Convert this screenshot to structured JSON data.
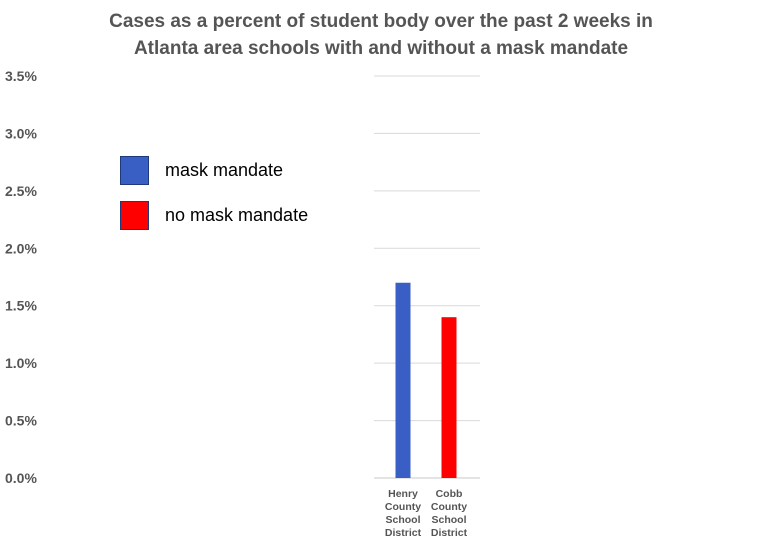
{
  "chart_data": {
    "type": "bar",
    "title_lines": [
      "Cases as a percent of student body over the past 2 weeks in",
      "Atlanta area schools with and without a mask mandate"
    ],
    "categories": [
      [
        "Henry",
        "County",
        "School",
        "District"
      ],
      [
        "Cobb",
        "County",
        "School",
        "District"
      ]
    ],
    "values": [
      1.7,
      1.4
    ],
    "bar_colors": [
      "#3a5fc4",
      "#ff0000"
    ],
    "y_ticks": [
      {
        "value": 0,
        "label": "0.0%"
      },
      {
        "value": 0.5,
        "label": "0.5%"
      },
      {
        "value": 1.0,
        "label": "1.0%"
      },
      {
        "value": 1.5,
        "label": "1.5%"
      },
      {
        "value": 2.0,
        "label": "2.0%"
      },
      {
        "value": 2.5,
        "label": "2.5%"
      },
      {
        "value": 3.0,
        "label": "3.0%"
      },
      {
        "value": 3.5,
        "label": "3.5%"
      }
    ],
    "ylim": [
      0,
      3.5
    ],
    "grid": true,
    "legend_placement": "left",
    "legend": [
      {
        "label": "mask mandate",
        "color": "#3a5fc4"
      },
      {
        "label": "no mask mandate",
        "color": "#ff0000"
      }
    ]
  }
}
